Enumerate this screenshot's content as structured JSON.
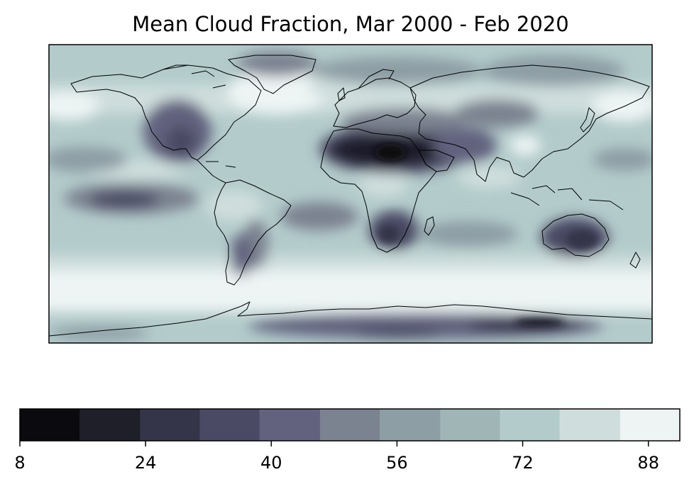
{
  "map": {
    "title": "Mean Cloud Fraction, Mar 2000 - Feb 2020",
    "projection": "PlateCarree",
    "extent": [
      -180,
      180,
      -90,
      90
    ],
    "coastlines": true
  },
  "colorbar": {
    "orientation": "horizontal",
    "colormap": "bone",
    "levels": [
      8,
      15.6,
      23.3,
      30.9,
      38.5,
      46.2,
      53.8,
      61.5,
      69.1,
      76.7,
      84.4,
      92
    ],
    "colors": [
      "#0b0b0f",
      "#1f1f29",
      "#35354a",
      "#4a4a64",
      "#62627e",
      "#7b8290",
      "#8d9ea4",
      "#9fb5b6",
      "#b3cbcb",
      "#cfdedd",
      "#eef4f4"
    ],
    "ticks": [
      {
        "value": 8,
        "label": "8"
      },
      {
        "value": 24,
        "label": "24"
      },
      {
        "value": 40,
        "label": "40"
      },
      {
        "value": 56,
        "label": "56"
      },
      {
        "value": 72,
        "label": "72"
      },
      {
        "value": 88,
        "label": "88"
      }
    ]
  }
}
